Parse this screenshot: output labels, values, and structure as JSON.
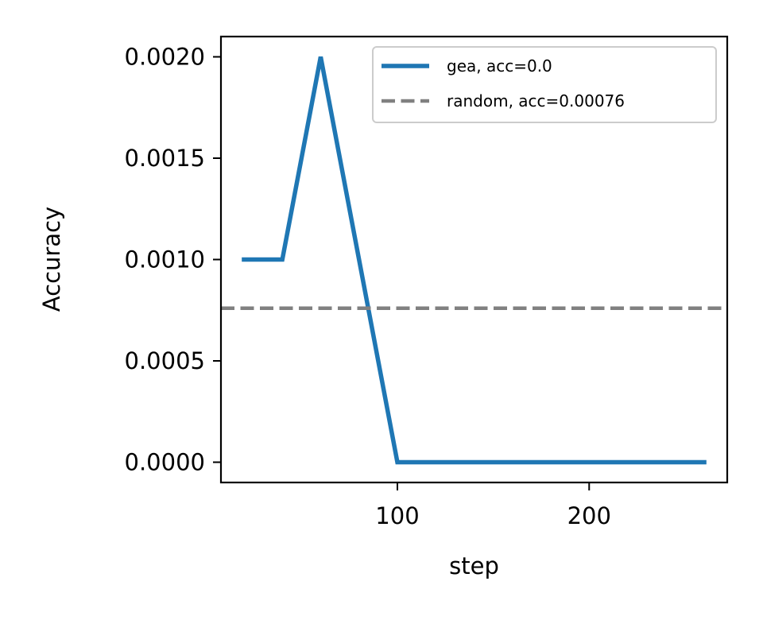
{
  "chart_data": {
    "type": "line",
    "title": "",
    "xlabel": "step",
    "ylabel": "Accuracy",
    "xlim": [
      8,
      272
    ],
    "ylim": [
      -0.0001,
      0.0021
    ],
    "xticks": [
      {
        "value": 100,
        "label": "100"
      },
      {
        "value": 200,
        "label": "200"
      }
    ],
    "yticks": [
      {
        "value": 0.0,
        "label": "0.0000"
      },
      {
        "value": 0.0005,
        "label": "0.0005"
      },
      {
        "value": 0.001,
        "label": "0.0010"
      },
      {
        "value": 0.0015,
        "label": "0.0015"
      },
      {
        "value": 0.002,
        "label": "0.0020"
      }
    ],
    "grid": false,
    "legend_position": "top-right",
    "series": [
      {
        "name": "gea, acc=0.0",
        "color": "#1f77b4",
        "style": "solid",
        "x": [
          20,
          40,
          60,
          80,
          100,
          120,
          140,
          160,
          180,
          200,
          220,
          240,
          260
        ],
        "y": [
          0.001,
          0.001,
          0.002,
          0.001,
          0.0,
          0.0,
          0.0,
          0.0,
          0.0,
          0.0,
          0.0,
          0.0,
          0.0
        ]
      },
      {
        "name": "random, acc=0.00076",
        "color": "#808080",
        "style": "dashed",
        "hline": 0.00076
      }
    ]
  }
}
